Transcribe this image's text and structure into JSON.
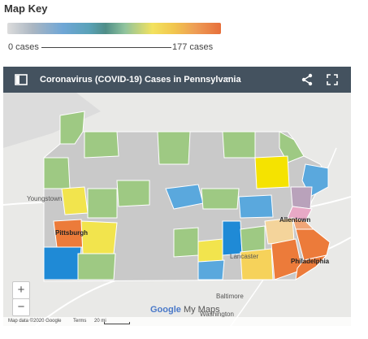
{
  "key": {
    "title": "Map Key",
    "min_label": "0 cases",
    "max_label": "177 cases"
  },
  "map": {
    "title": "Coronavirus (COVID-19) Cases in Pennsylvania",
    "caret": "▾",
    "icons": [
      "sidebar-toggle-icon",
      "share-icon",
      "fullscreen-icon"
    ],
    "zoom_in": "+",
    "zoom_out": "−",
    "brand_google": "Google",
    "brand_mymaps": "My Maps",
    "footer": {
      "credit": "Map data ©2020 Google",
      "terms": "Terms",
      "scale": "20 mi"
    },
    "places": {
      "youngstown": "Youngstown",
      "pittsburgh": "Pittsburgh",
      "allentown": "Allentown",
      "lancaster": "Lancaster",
      "philadelphia": "Philadelphia",
      "baltimore": "Baltimore",
      "washington": "Washington"
    },
    "colors": {
      "header": "#44525f",
      "no_cases": "#c9c9c9",
      "low_green": "#9ec983",
      "mid_blue": "#5aa8dd",
      "yellow": "#f2e44d",
      "orange": "#ec7b3a",
      "pink": "#e8a9c6"
    }
  }
}
